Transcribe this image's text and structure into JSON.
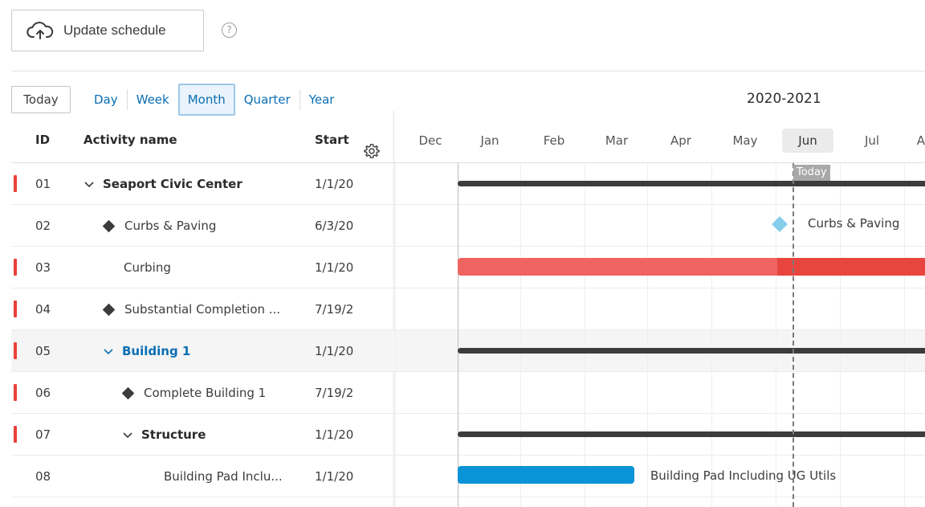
{
  "toolbar": {
    "update_label": "Update schedule",
    "help_label": "?"
  },
  "views": {
    "today_label": "Today",
    "items": [
      "Day",
      "Week",
      "Month",
      "Quarter",
      "Year"
    ],
    "selected": "Month"
  },
  "timeline": {
    "year_label": "2020-2021",
    "months": [
      "Dec",
      "Jan",
      "Feb",
      "Mar",
      "Apr",
      "May",
      "Jun",
      "Jul",
      "A"
    ],
    "current_month": "Jun",
    "today_label": "Today"
  },
  "columns": {
    "id": "ID",
    "name": "Activity name",
    "start": "Start"
  },
  "rows": [
    {
      "id": "01",
      "name": "Seaport Civic Center",
      "start": "1/1/20",
      "flag": true
    },
    {
      "id": "02",
      "name": "Curbs & Paving",
      "start": "6/3/20",
      "flag": false
    },
    {
      "id": "03",
      "name": "Curbing",
      "start": "1/1/20",
      "flag": true
    },
    {
      "id": "04",
      "name": "Substantial Completion ...",
      "start": "7/19/2",
      "flag": true
    },
    {
      "id": "05",
      "name": "Building 1",
      "start": "1/1/20",
      "flag": true
    },
    {
      "id": "06",
      "name": "Complete Building 1",
      "start": "7/19/2",
      "flag": true
    },
    {
      "id": "07",
      "name": "Structure",
      "start": "1/1/20",
      "flag": true
    },
    {
      "id": "08",
      "name": "Building Pad Inclu...",
      "start": "1/1/20",
      "flag": false
    }
  ],
  "gantt_labels": {
    "curbs_paving": "Curbs & Paving",
    "building_pad": "Building Pad Including UG Utils"
  },
  "colors": {
    "accent": "#0a6eb4",
    "critical": "#e8413a",
    "summary": "#3c3c3c",
    "task_blue": "#0a93d6",
    "milestone": "#86cdea"
  }
}
